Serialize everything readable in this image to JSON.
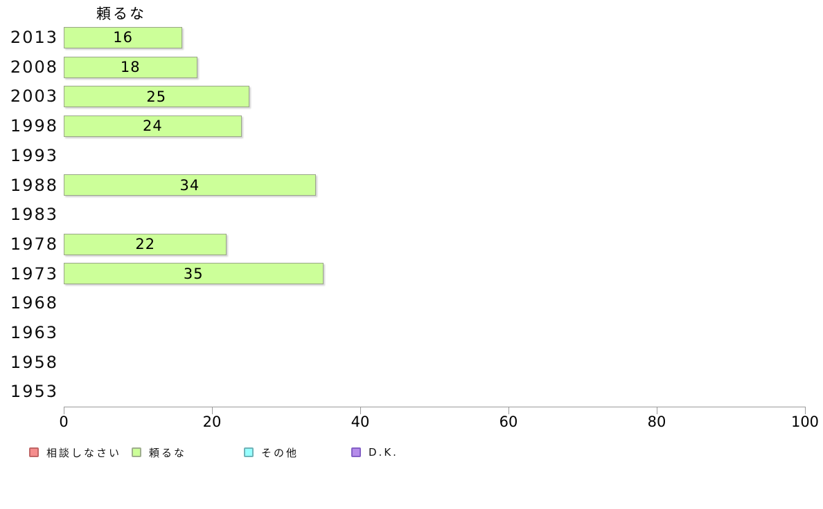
{
  "chart_data": {
    "type": "bar",
    "orientation": "horizontal",
    "title": "頼るな",
    "categories": [
      "2013",
      "2008",
      "2003",
      "1998",
      "1993",
      "1988",
      "1983",
      "1978",
      "1973",
      "1968",
      "1963",
      "1958",
      "1953"
    ],
    "series": [
      {
        "name": "頼るな",
        "color": "#ccff99",
        "border_color": "#99a589",
        "values": [
          16,
          18,
          25,
          24,
          null,
          34,
          null,
          22,
          35,
          null,
          null,
          null,
          null
        ]
      }
    ],
    "value_labels": "inside-center",
    "xlim": [
      0,
      100
    ],
    "xticks": [
      0,
      20,
      40,
      60,
      80,
      100
    ],
    "grid": false,
    "axis_color": "#999999",
    "text_color": "#000000",
    "legend": {
      "position": "bottom",
      "entries": [
        {
          "label": "相談しなさい",
          "color": "#f58d8d",
          "border_color": "#c06565"
        },
        {
          "label": "頼るな",
          "color": "#ccff99",
          "border_color": "#9fae8e"
        },
        {
          "label": "その他",
          "color": "#97ffff",
          "border_color": "#6fb3b8"
        },
        {
          "label": "D.K.",
          "color": "#b58cea",
          "border_color": "#8460c6"
        }
      ]
    }
  }
}
